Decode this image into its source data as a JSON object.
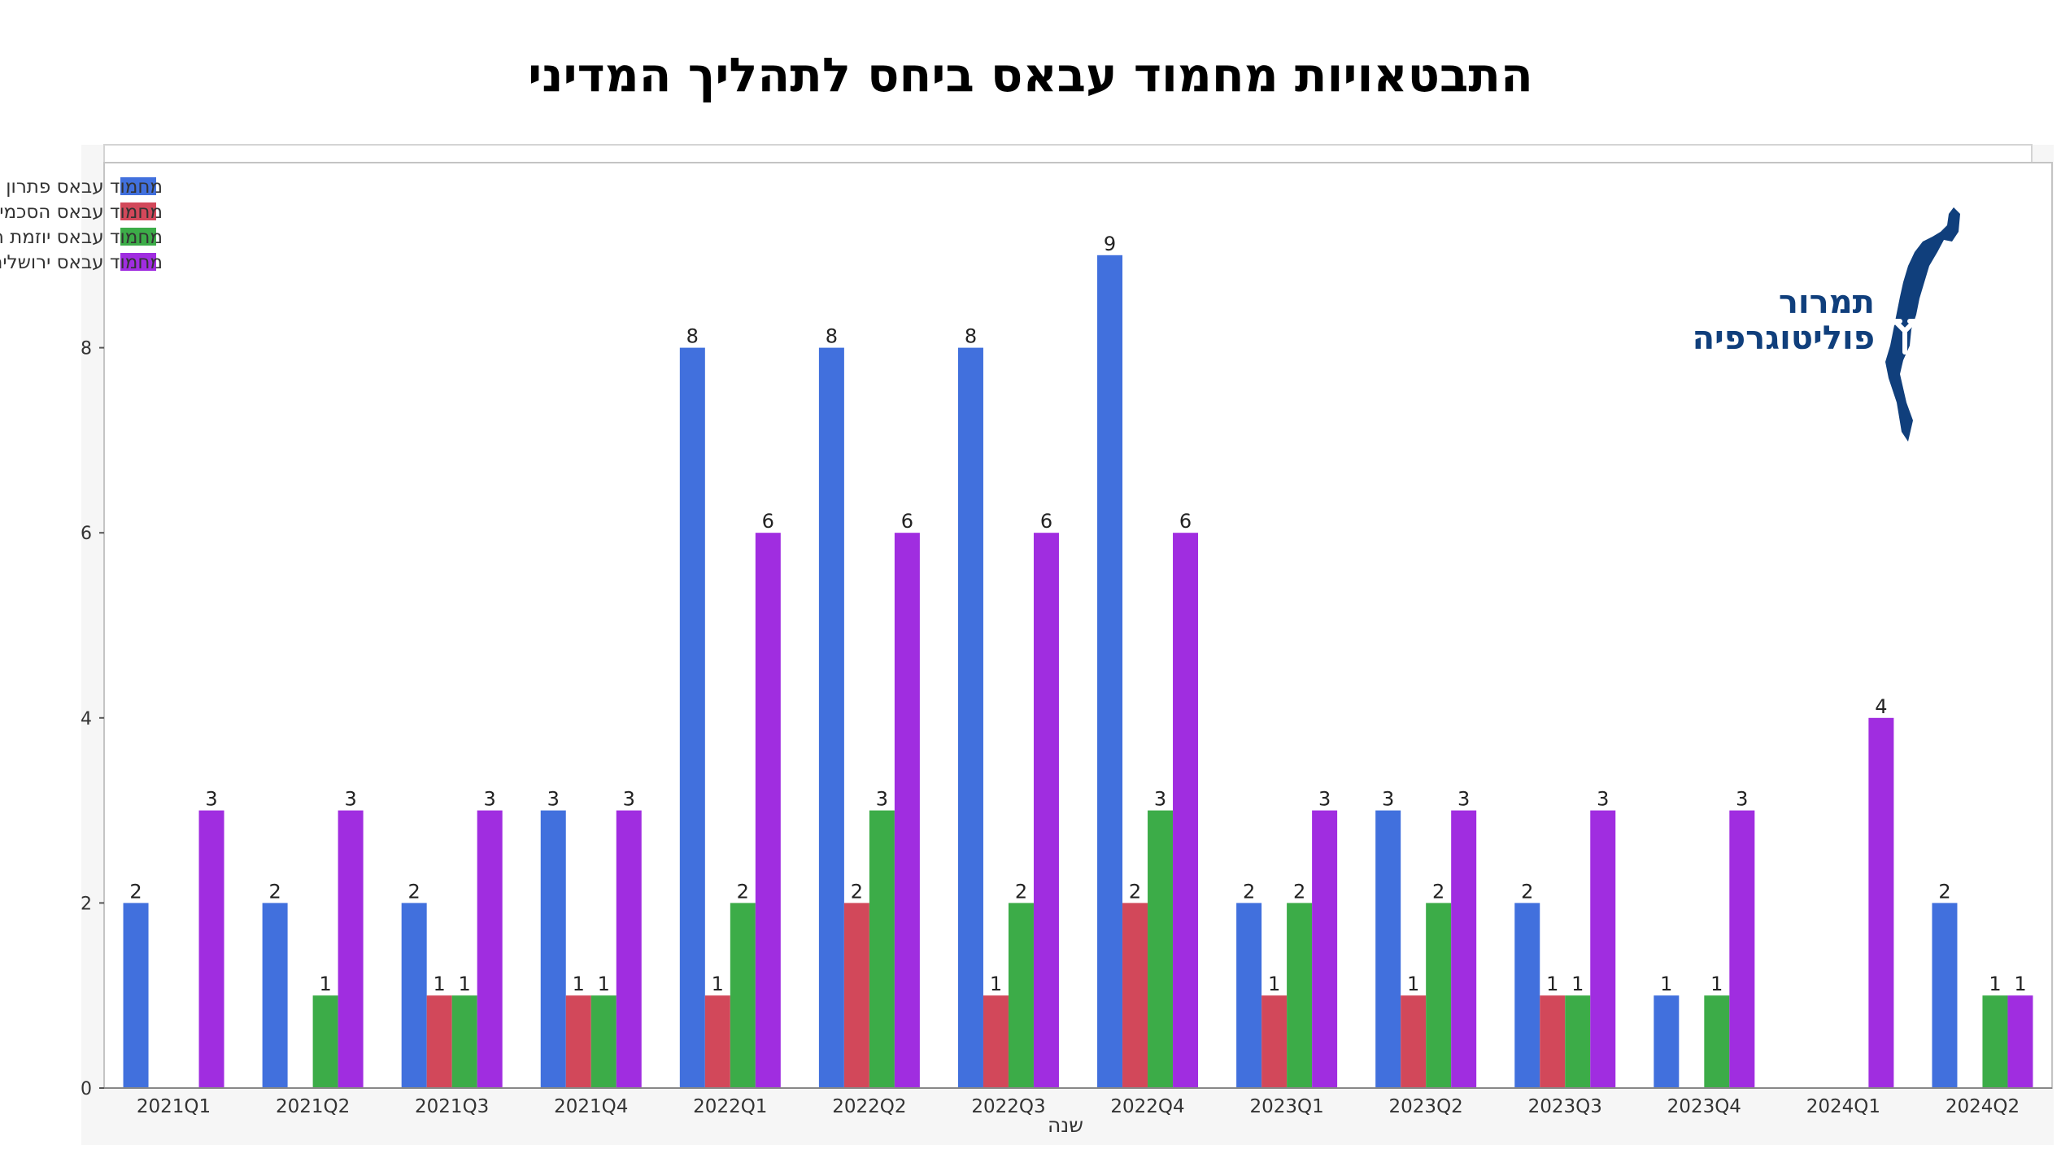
{
  "chart_data": {
    "type": "bar",
    "title": "התבטאויות מחמוד עבאס ביחס לתהליך המדיני",
    "xlabel": "שנה",
    "ylabel": "",
    "ylim": [
      0,
      10
    ],
    "yticks": [
      0,
      2,
      4,
      6,
      8
    ],
    "ytick_labels": [
      "0",
      "2",
      "4",
      "6",
      "8"
    ],
    "grid": false,
    "legend_position": "top-left",
    "categories": [
      "2021Q1",
      "2021Q2",
      "2021Q3",
      "2021Q4",
      "2022Q1",
      "2022Q2",
      "2022Q3",
      "2022Q4",
      "2023Q1",
      "2023Q2",
      "2023Q3",
      "2023Q4",
      "2024Q1",
      "2024Q2"
    ],
    "series": [
      {
        "name": "מחמוד עבאס פתרון שתי מדינות",
        "color": "#4170dd",
        "values": [
          2,
          2,
          2,
          3,
          8,
          8,
          8,
          9,
          2,
          3,
          2,
          1,
          0,
          2
        ]
      },
      {
        "name": "מחמוד עבאס הסכמי אוסלו",
        "color": "#d2485a",
        "values": [
          0,
          0,
          1,
          1,
          1,
          2,
          1,
          2,
          1,
          1,
          1,
          0,
          0,
          0
        ]
      },
      {
        "name": "מחמוד עבאס יוזמת השלום הערבית",
        "color": "#3cac48",
        "values": [
          0,
          1,
          1,
          1,
          2,
          3,
          2,
          3,
          2,
          2,
          1,
          1,
          0,
          1
        ]
      },
      {
        "name": "מחמוד עבאס ירושלים המזרחית עיר בירה",
        "color": "#a02de0",
        "values": [
          3,
          3,
          3,
          3,
          6,
          6,
          6,
          6,
          3,
          3,
          3,
          3,
          4,
          1
        ]
      }
    ]
  },
  "logo": {
    "line1": "תמרור",
    "line2": "פוליטוגרפיה",
    "color": "#103f7c"
  }
}
